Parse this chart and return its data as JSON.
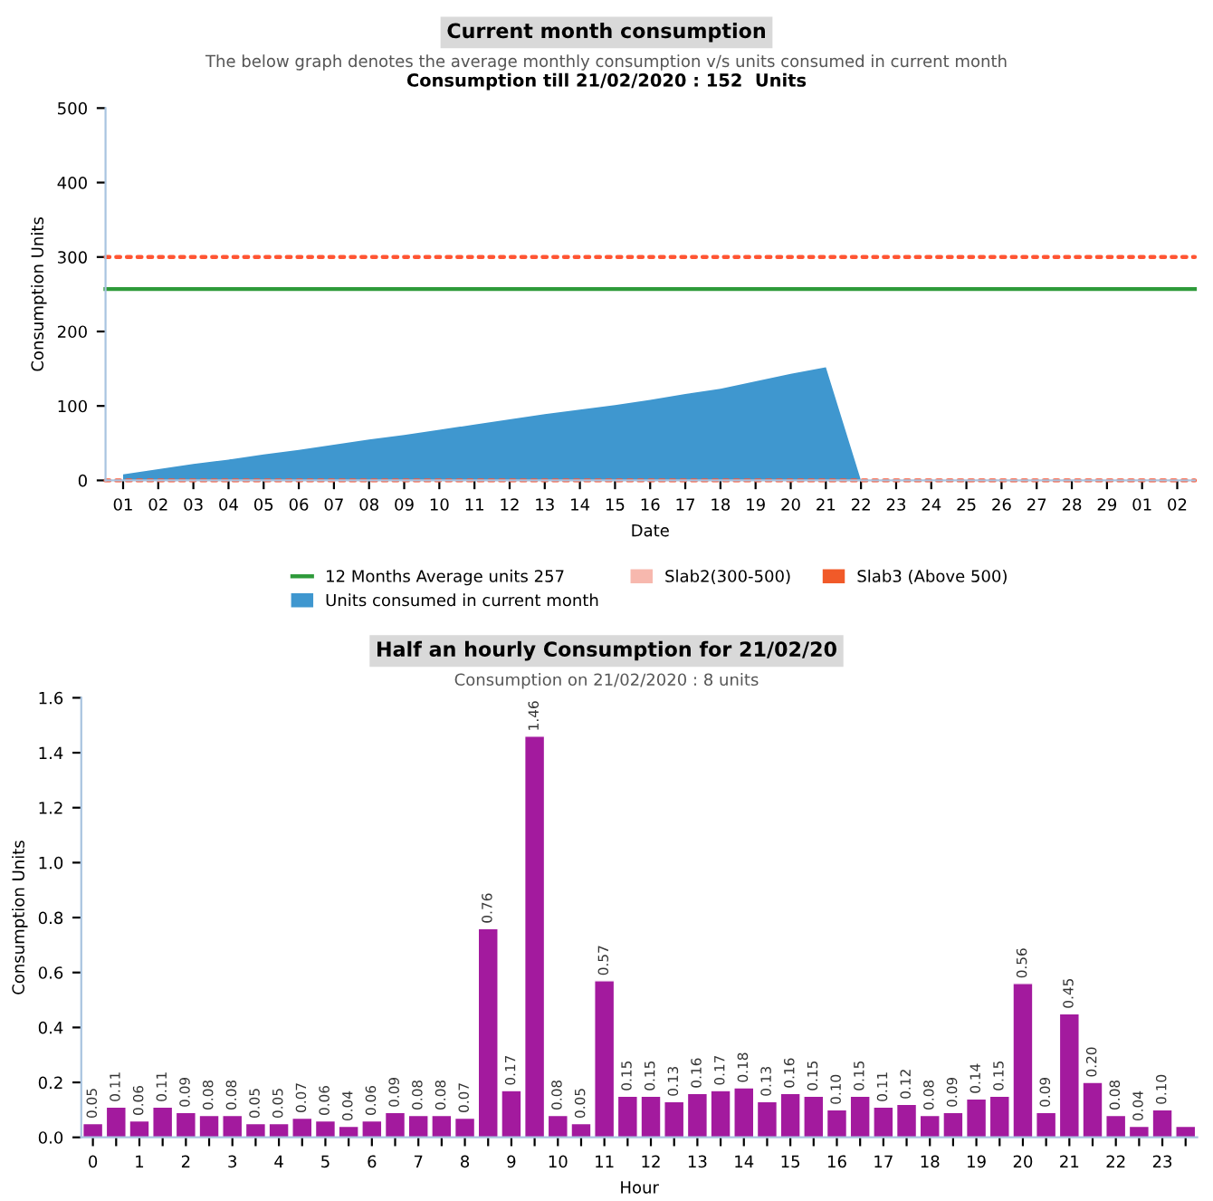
{
  "chart_data": [
    {
      "type": "area",
      "title": "Current month consumption",
      "subtitle": "The below graph denotes the average monthly consumption v/s units consumed in current month",
      "annotations": [
        "Consumption till 21/02/2020 : 152  Units"
      ],
      "xlabel": "Date",
      "ylabel": "Consumption Units",
      "categories": [
        "01",
        "02",
        "03",
        "04",
        "05",
        "06",
        "07",
        "08",
        "09",
        "10",
        "11",
        "12",
        "13",
        "14",
        "15",
        "16",
        "17",
        "18",
        "19",
        "20",
        "21",
        "22",
        "23",
        "24",
        "25",
        "26",
        "27",
        "28",
        "29",
        "01",
        "02"
      ],
      "series": [
        {
          "name": "Units consumed in current month",
          "color": "#3f97cf",
          "type": "area",
          "values": [
            8,
            15,
            22,
            28,
            35,
            41,
            48,
            55,
            61,
            68,
            75,
            82,
            89,
            95,
            101,
            108,
            116,
            123,
            133,
            143,
            152,
            0,
            null,
            null,
            null,
            null,
            null,
            null,
            null,
            null,
            null
          ]
        },
        {
          "name": "Slab2(300-500)",
          "color": "#f7b8ae",
          "type": "bar",
          "values": [
            null,
            null,
            null,
            null,
            null,
            null,
            null,
            null,
            null,
            null,
            null,
            null,
            null,
            null,
            null,
            null,
            null,
            null,
            null,
            null,
            null,
            null,
            null,
            null,
            null,
            null,
            null,
            null,
            null,
            null,
            null
          ]
        },
        {
          "name": "Slab3 (Above 500)",
          "color": "#f15a29",
          "type": "bar",
          "values": [
            null,
            null,
            null,
            null,
            null,
            null,
            null,
            null,
            null,
            null,
            null,
            null,
            null,
            null,
            null,
            null,
            null,
            null,
            null,
            null,
            null,
            null,
            null,
            null,
            null,
            null,
            null,
            null,
            null,
            null,
            null
          ]
        }
      ],
      "ref_lines": [
        {
          "axis": "y",
          "value": 257,
          "label": "12 Months Average units 257",
          "color": "#2e9a3a",
          "line_style": "solid"
        },
        {
          "axis": "y",
          "value": 300,
          "label": null,
          "color": "#ff5533",
          "line_style": "dotted"
        },
        {
          "axis": "y",
          "value": 0,
          "label": null,
          "color": "#ff5533",
          "line_style": "dotted"
        }
      ],
      "ylim": [
        0,
        500
      ],
      "yticks": [
        0,
        100,
        200,
        300,
        400,
        500
      ],
      "grid": false,
      "legend": "bottom"
    },
    {
      "type": "bar",
      "title": "Half an hourly Consumption for 21/02/20",
      "subtitle": "Consumption on 21/02/2020 : 8 units",
      "xlabel": "Hour",
      "ylabel": "Consumption Units",
      "categories": [
        "0",
        null,
        "1",
        null,
        "2",
        null,
        "3",
        null,
        "4",
        null,
        "5",
        null,
        "6",
        null,
        "7",
        null,
        "8",
        null,
        "9",
        null,
        "10",
        null,
        "11",
        null,
        "12",
        null,
        "13",
        null,
        "14",
        null,
        "15",
        null,
        "16",
        null,
        "17",
        null,
        "18",
        null,
        "19",
        null,
        "20",
        null,
        "21",
        null,
        "22",
        null,
        "23",
        null
      ],
      "values": [
        0.05,
        0.11,
        0.06,
        0.11,
        0.09,
        0.08,
        0.08,
        0.05,
        0.05,
        0.07,
        0.06,
        0.04,
        0.06,
        0.09,
        0.08,
        0.08,
        0.07,
        0.76,
        0.17,
        1.46,
        0.08,
        0.05,
        0.57,
        0.15,
        0.15,
        0.13,
        0.16,
        0.17,
        0.18,
        0.13,
        0.16,
        0.15,
        0.1,
        0.15,
        0.11,
        0.12,
        0.08,
        0.09,
        0.14,
        0.15,
        0.56,
        0.09,
        0.45,
        0.2,
        0.08,
        0.04,
        0.1,
        0.04
      ],
      "value_labels": [
        "0.05",
        "0.11",
        "0.06",
        "0.11",
        "0.09",
        "0.08",
        "0.08",
        "0.05",
        "0.05",
        "0.07",
        "0.06",
        "0.04",
        "0.06",
        "0.09",
        "0.08",
        "0.08",
        "0.07",
        "0.76",
        "0.17",
        "1.46",
        "0.08",
        "0.05",
        "0.57",
        "0.15",
        "0.15",
        "0.13",
        "0.16",
        "0.17",
        "0.18",
        "0.13",
        "0.16",
        "0.15",
        "0.10",
        "0.15",
        "0.11",
        "0.12",
        "0.08",
        "0.09",
        "0.14",
        "0.15",
        "0.56",
        "0.09",
        "0.45",
        "0.20",
        "0.08",
        "0.04",
        "0.10",
        null
      ],
      "color": "#a31a9e",
      "ylim": [
        0,
        1.6
      ],
      "yticks": [
        {
          "value": 0,
          "label": "0.0"
        },
        0.2,
        0.4,
        0.6,
        0.8,
        {
          "value": 1,
          "label": "1.0"
        },
        1.2,
        1.4,
        1.6
      ],
      "grid": false,
      "legend": false
    }
  ]
}
